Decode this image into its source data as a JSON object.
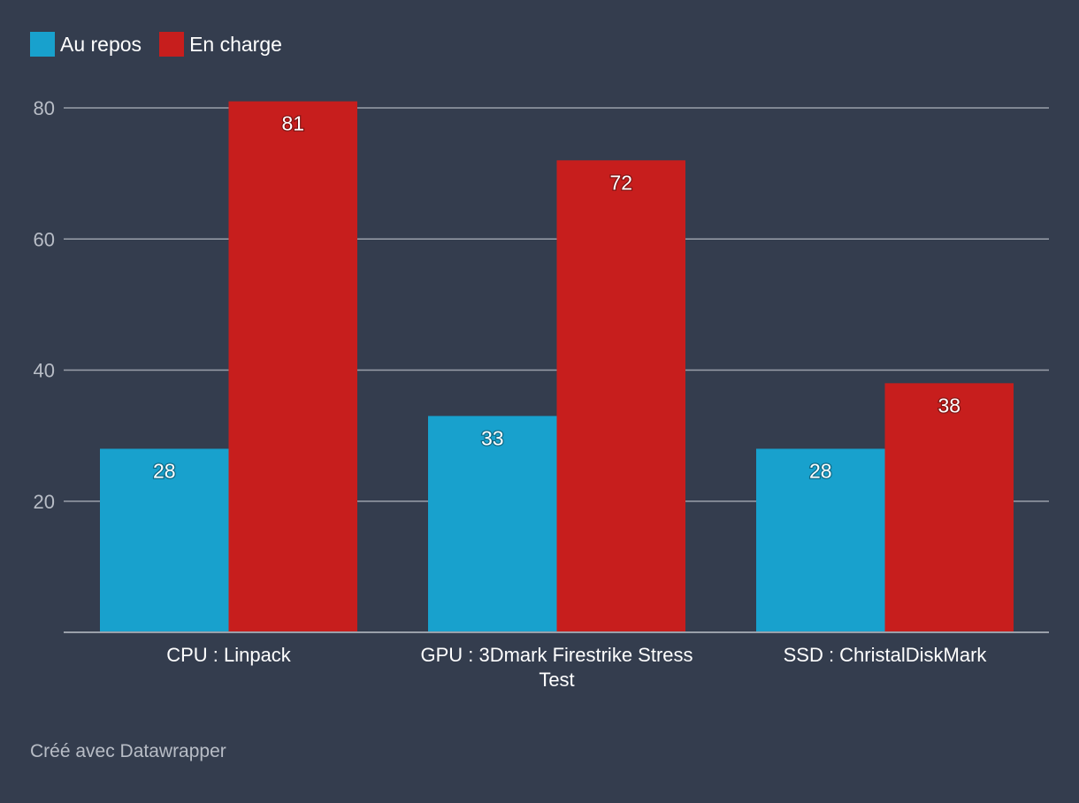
{
  "chart_data": {
    "type": "bar",
    "title": "",
    "xlabel": "",
    "ylabel": "",
    "categories": [
      [
        "CPU : Linpack"
      ],
      [
        "GPU : 3Dmark Firestrike Stress",
        "Test"
      ],
      [
        "SSD : ChristalDiskMark"
      ]
    ],
    "series": [
      {
        "name": "Au repos",
        "color": "#18a1cd",
        "values": [
          28,
          33,
          28
        ]
      },
      {
        "name": "En charge",
        "color": "#c71e1d",
        "values": [
          81,
          72,
          38
        ]
      }
    ],
    "yticks": [
      20,
      40,
      60,
      80
    ],
    "ylim": [
      0,
      80
    ],
    "grid": true,
    "legend": "top-left"
  },
  "footer": {
    "credit": "Créé avec Datawrapper"
  },
  "colors": {
    "background": "#343d4e",
    "grid": "#9aa0aa",
    "tick_label": "#b8bdc6"
  }
}
